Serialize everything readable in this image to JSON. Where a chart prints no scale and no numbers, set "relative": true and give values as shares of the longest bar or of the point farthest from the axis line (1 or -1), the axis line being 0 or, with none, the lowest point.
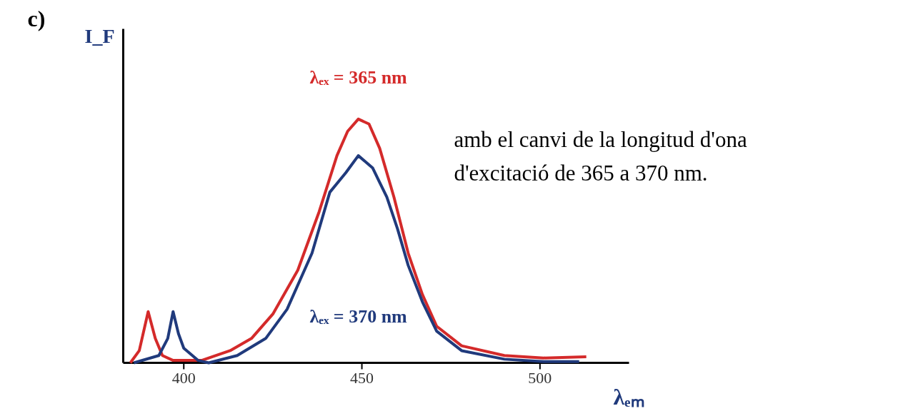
{
  "chart_data": {
    "type": "line",
    "relative": true,
    "xlabel": "λₑₘ",
    "ylabel": "I_F",
    "annotations": [
      "c)",
      "amb el canvi de la longitud d'ona d'excitació de 365 a 370 nm."
    ],
    "xlim": [
      383,
      525
    ],
    "xticks": [
      400,
      450,
      500
    ],
    "tick_labels": "x",
    "grid": false,
    "marker": "none",
    "line_style": "solid",
    "series": [
      {
        "name": "λₑₓ = 365 nm",
        "color": "#d42a2a",
        "x": [
          385,
          387.5,
          390,
          392,
          394,
          397,
          405,
          413,
          419,
          425,
          432,
          438,
          443,
          446,
          449,
          452,
          455,
          459,
          463,
          467,
          471,
          478,
          490,
          501,
          513
        ],
        "values": [
          0,
          0.05,
          0.21,
          0.1,
          0.03,
          0.01,
          0.01,
          0.05,
          0.1,
          0.2,
          0.38,
          0.62,
          0.85,
          0.95,
          1.0,
          0.98,
          0.88,
          0.68,
          0.45,
          0.28,
          0.15,
          0.07,
          0.03,
          0.02,
          0.025
        ]
      },
      {
        "name": "λₑₓ = 370 nm",
        "color": "#203a7c",
        "x": [
          386,
          393,
          395.5,
          397,
          398.5,
          400,
          404,
          407,
          415,
          423,
          429,
          436,
          441,
          445.5,
          449,
          453,
          457,
          460,
          463,
          467,
          471,
          478,
          490,
          501,
          511
        ],
        "values": [
          0,
          0.03,
          0.1,
          0.21,
          0.12,
          0.06,
          0.01,
          0,
          0.03,
          0.1,
          0.22,
          0.45,
          0.7,
          0.78,
          0.85,
          0.8,
          0.68,
          0.55,
          0.4,
          0.25,
          0.13,
          0.05,
          0.015,
          0.005,
          0.005
        ]
      }
    ]
  }
}
